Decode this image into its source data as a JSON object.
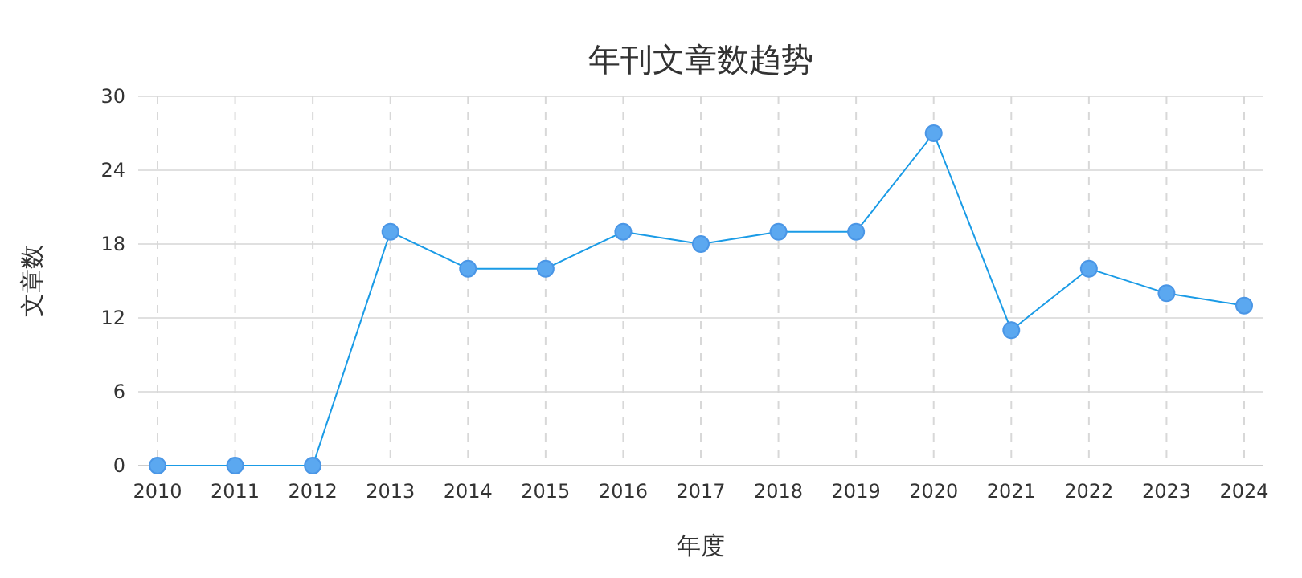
{
  "chart_data": {
    "type": "line",
    "title": "年刊文章数趋势",
    "xlabel": "年度",
    "ylabel": "文章数",
    "categories": [
      "2010",
      "2011",
      "2012",
      "2013",
      "2014",
      "2015",
      "2016",
      "2017",
      "2018",
      "2019",
      "2020",
      "2021",
      "2022",
      "2023",
      "2024"
    ],
    "series": [
      {
        "color": "#1a9be6",
        "values": [
          0,
          0,
          0,
          19,
          16,
          16,
          19,
          18,
          19,
          19,
          27,
          11,
          16,
          14,
          13
        ]
      }
    ],
    "ylim": [
      0,
      30
    ],
    "yticks": [
      0,
      6,
      12,
      18,
      24,
      30
    ],
    "grid": true,
    "marker": "circle",
    "line_style": "solid"
  }
}
